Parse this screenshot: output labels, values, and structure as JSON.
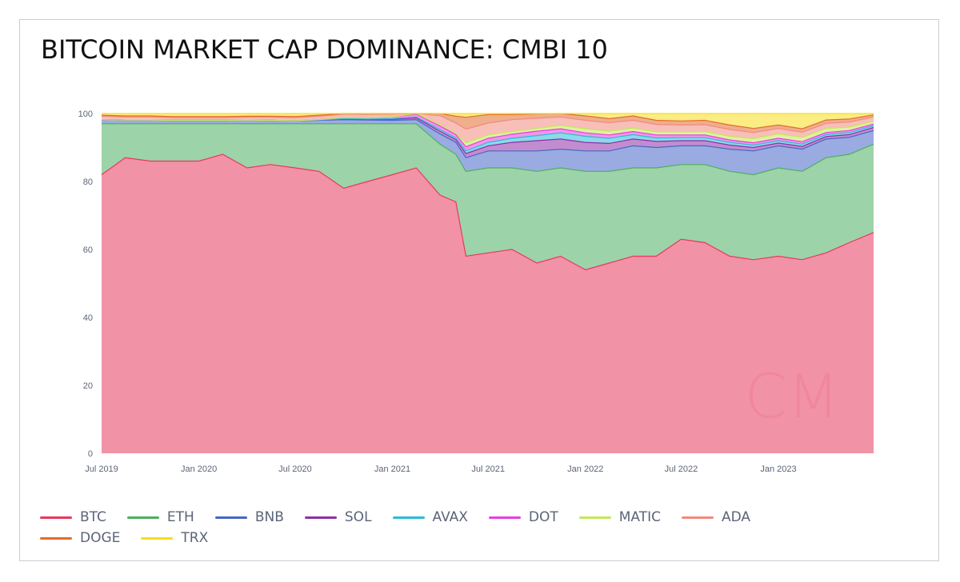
{
  "title": "BITCOIN MARKET CAP DOMINANCE: CMBI 10",
  "watermark": "CM",
  "chart_data": {
    "type": "area",
    "stacked": true,
    "ylim": [
      0,
      100
    ],
    "yticks": [
      0,
      20,
      40,
      60,
      80,
      100
    ],
    "xlabel": "",
    "ylabel": "",
    "grid": false,
    "legend_position": "bottom-left",
    "x_ticks": [
      {
        "date": "2019-07-01",
        "label": "Jul 2019"
      },
      {
        "date": "2020-01-01",
        "label": "Jan 2020"
      },
      {
        "date": "2020-07-01",
        "label": "Jul 2020"
      },
      {
        "date": "2021-01-01",
        "label": "Jan 2021"
      },
      {
        "date": "2021-07-01",
        "label": "Jul 2021"
      },
      {
        "date": "2022-01-01",
        "label": "Jan 2022"
      },
      {
        "date": "2022-07-01",
        "label": "Jul 2022"
      },
      {
        "date": "2023-01-01",
        "label": "Jan 2023"
      }
    ],
    "x": [
      "2019-07-01",
      "2019-08-15",
      "2019-10-01",
      "2019-11-15",
      "2020-01-01",
      "2020-02-15",
      "2020-04-01",
      "2020-05-15",
      "2020-07-01",
      "2020-08-15",
      "2020-10-01",
      "2020-11-15",
      "2021-01-01",
      "2021-02-15",
      "2021-04-01",
      "2021-05-01",
      "2021-05-20",
      "2021-07-01",
      "2021-08-15",
      "2021-10-01",
      "2021-11-15",
      "2022-01-01",
      "2022-02-15",
      "2022-04-01",
      "2022-05-15",
      "2022-07-01",
      "2022-08-15",
      "2022-10-01",
      "2022-11-15",
      "2023-01-01",
      "2023-02-15",
      "2023-04-01",
      "2023-05-15",
      "2023-06-30"
    ],
    "series": [
      {
        "name": "BTC",
        "color": "#e8385e",
        "values": [
          82,
          87,
          86,
          86,
          86,
          88,
          84,
          85,
          84,
          83,
          78,
          80,
          82,
          84,
          76,
          74,
          58,
          59,
          60,
          56,
          58,
          54,
          56,
          58,
          58,
          63,
          62,
          58,
          57,
          58,
          57,
          59,
          62,
          65
        ]
      },
      {
        "name": "ETH",
        "color": "#4caf60",
        "values": [
          15,
          10,
          11,
          11,
          11,
          9,
          13,
          12,
          13,
          14,
          19,
          17,
          15,
          13,
          15,
          14,
          25,
          25,
          24,
          27,
          26,
          29,
          27,
          26,
          26,
          22,
          23,
          25,
          25,
          26,
          26,
          28,
          26,
          26
        ]
      },
      {
        "name": "BNB",
        "color": "#4766c8",
        "values": [
          1.2,
          1.1,
          1.1,
          1.0,
          1.0,
          1.0,
          1.1,
          1.0,
          0.9,
          1.0,
          1.2,
          1.1,
          1.0,
          1.2,
          3.0,
          3.5,
          4.0,
          5.0,
          5.0,
          6.0,
          5.5,
          6.0,
          6.0,
          6.5,
          6.0,
          5.5,
          5.5,
          6.5,
          7.0,
          6.5,
          6.5,
          5.5,
          5.0,
          4.0
        ]
      },
      {
        "name": "SOL",
        "color": "#8e2fa8",
        "values": [
          0,
          0,
          0,
          0,
          0,
          0,
          0,
          0,
          0,
          0.1,
          0.2,
          0.2,
          0.3,
          0.5,
          0.8,
          0.8,
          1.2,
          1.5,
          2.5,
          3.0,
          3.0,
          2.5,
          2.2,
          2.0,
          1.8,
          1.5,
          1.5,
          1.2,
          1.0,
          0.8,
          0.8,
          0.7,
          0.8,
          0.9
        ]
      },
      {
        "name": "AVAX",
        "color": "#2bbbd8",
        "values": [
          0,
          0,
          0,
          0,
          0,
          0,
          0,
          0,
          0,
          0,
          0.1,
          0.1,
          0.2,
          0.3,
          0.5,
          0.5,
          0.8,
          1.0,
          1.2,
          1.5,
          1.8,
          1.8,
          1.5,
          1.3,
          1.0,
          0.9,
          0.9,
          0.8,
          0.7,
          0.7,
          0.7,
          0.6,
          0.6,
          0.5
        ]
      },
      {
        "name": "DOT",
        "color": "#e83ee0",
        "values": [
          0,
          0,
          0,
          0,
          0,
          0,
          0,
          0,
          0,
          0.1,
          0.3,
          0.3,
          0.5,
          0.8,
          1.0,
          1.0,
          1.2,
          1.2,
          1.2,
          1.3,
          1.2,
          1.0,
          1.0,
          0.9,
          0.9,
          0.8,
          0.8,
          0.7,
          0.7,
          0.7,
          0.7,
          0.6,
          0.6,
          0.5
        ]
      },
      {
        "name": "MATIC",
        "color": "#c4e85a",
        "values": [
          0,
          0,
          0,
          0,
          0,
          0,
          0,
          0,
          0,
          0,
          0,
          0,
          0,
          0.2,
          0.3,
          0.4,
          1.2,
          1.0,
          0.8,
          0.8,
          1.0,
          1.2,
          1.1,
          1.0,
          0.9,
          0.9,
          1.0,
          1.1,
          1.2,
          1.3,
          1.3,
          1.2,
          1.0,
          0.8
        ]
      },
      {
        "name": "ADA",
        "color": "#f28a80",
        "values": [
          1.0,
          0.9,
          0.9,
          0.8,
          0.8,
          0.8,
          0.8,
          0.9,
          0.9,
          1.0,
          1.0,
          1.0,
          0.8,
          2.5,
          2.8,
          3.0,
          4.0,
          3.5,
          3.5,
          3.0,
          2.5,
          2.5,
          2.5,
          2.3,
          2.2,
          2.0,
          2.0,
          2.0,
          1.8,
          1.6,
          1.5,
          1.5,
          1.5,
          1.3
        ]
      },
      {
        "name": "DOGE",
        "color": "#e26b2e",
        "values": [
          0.3,
          0.3,
          0.3,
          0.3,
          0.3,
          0.3,
          0.3,
          0.3,
          0.3,
          0.3,
          0.3,
          0.3,
          0.3,
          0.8,
          1.8,
          2.0,
          3.5,
          2.5,
          1.5,
          1.3,
          1.3,
          1.3,
          1.2,
          1.3,
          1.2,
          1.2,
          1.3,
          1.3,
          1.2,
          1.0,
          1.0,
          1.0,
          0.9,
          0.6
        ]
      },
      {
        "name": "TRX",
        "color": "#f7dd1d",
        "values": [
          0.5,
          0.7,
          0.7,
          0.9,
          0.9,
          0.9,
          0.8,
          0.8,
          0.9,
          0.5,
          0.4,
          0.4,
          0.4,
          0.2,
          0.2,
          0.2,
          0.3,
          0.3,
          0.3,
          0.4,
          0.5,
          0.4,
          0.5,
          0.5,
          0.6,
          0.8,
          0.8,
          0.8,
          0.9,
          0.9,
          0.9,
          0.9,
          0.9,
          0.9
        ]
      }
    ]
  }
}
